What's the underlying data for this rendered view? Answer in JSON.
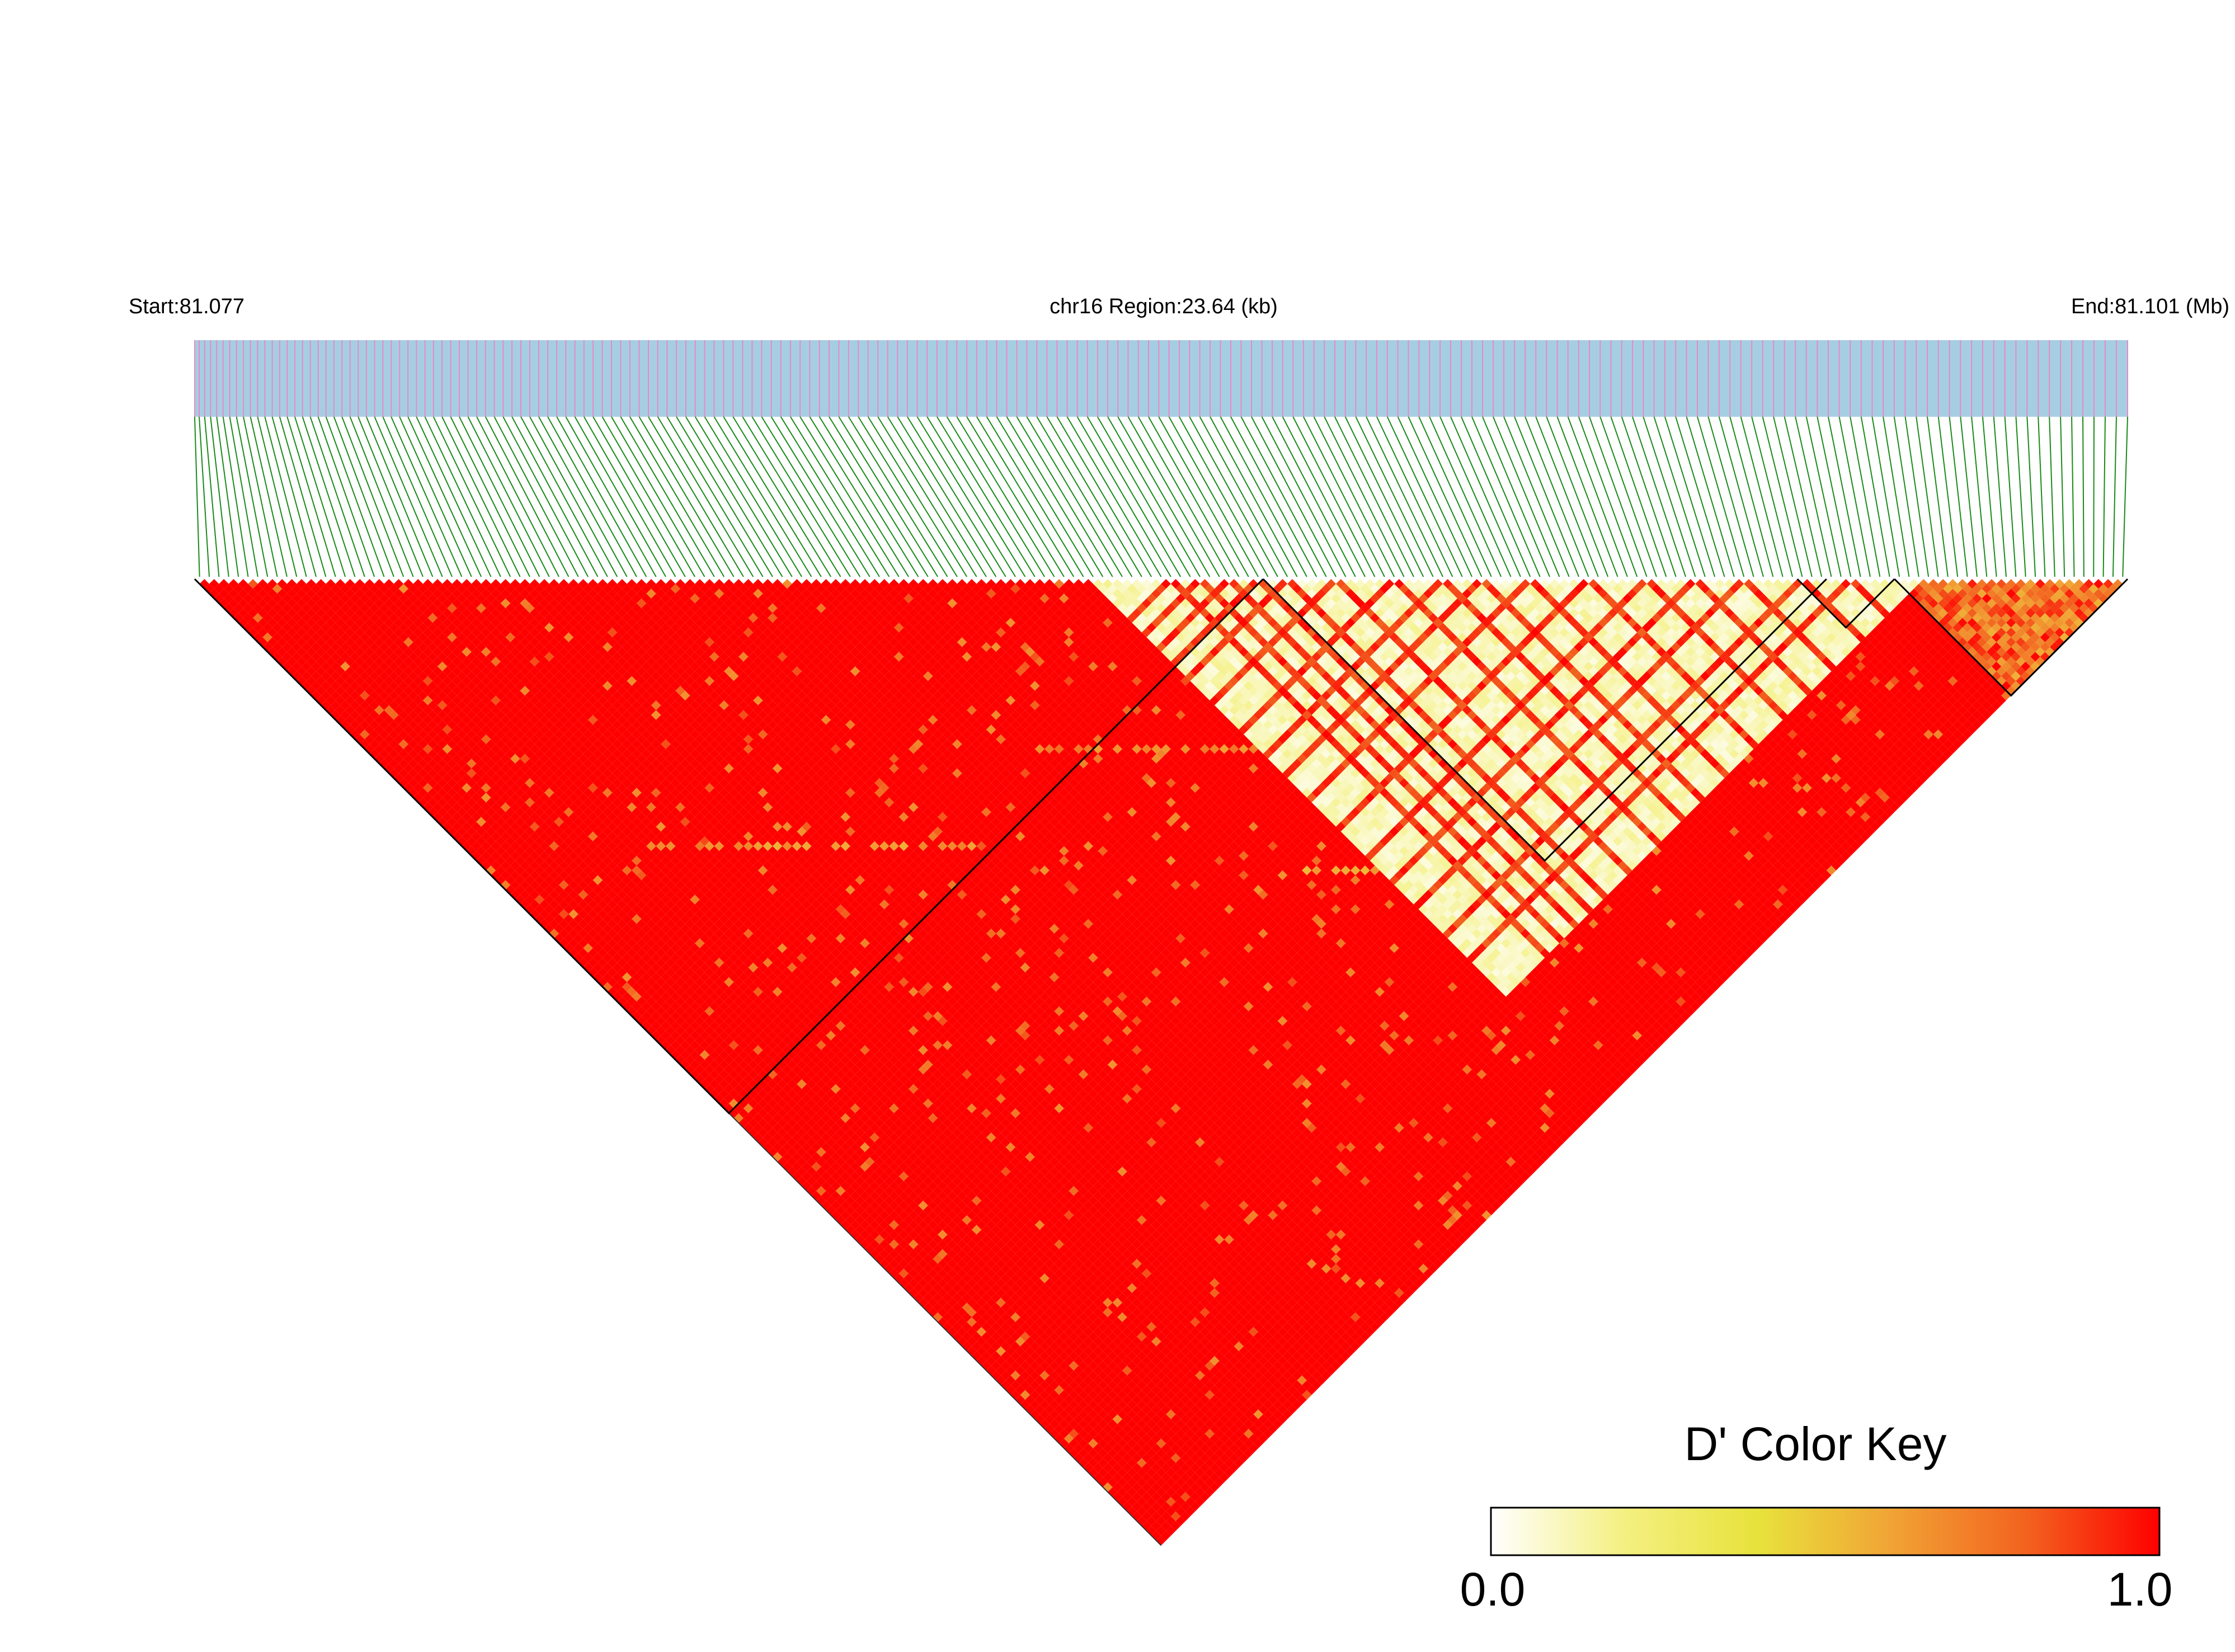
{
  "chart_data": {
    "type": "heatmap",
    "title": "",
    "region": {
      "start_label": "Start:81.077",
      "center_label": "chr16 Region:23.64 (kb)",
      "end_label": "End:81.101 (Mb)",
      "chromosome": "chr16",
      "start_mb": 81.077,
      "end_mb": 81.101,
      "length_kb": 23.64
    },
    "snp_count": 199,
    "snp_track": {
      "background": "#A6CEE3",
      "tick_color": "#E78AC3",
      "connector_color": "#1A8A1A"
    },
    "ld_matrix": {
      "metric": "D'",
      "background_value": 1.0,
      "low_ld_region": {
        "snps": [
          93,
          178
        ],
        "typical_value": 0.05
      },
      "high_ld_diagonal_bands": [
        {
          "offset": 55,
          "snp_range": [
            20,
            55
          ],
          "value": 0.55
        },
        {
          "offset": 35,
          "snp_range": [
            70,
            98
          ],
          "value": 0.6
        },
        {
          "offset": 45,
          "snp_range": [
            95,
            115
          ],
          "value": 0.85
        },
        {
          "offset": 60,
          "snp_range": [
            85,
            105
          ],
          "value": 0.5
        }
      ],
      "blocks_outlined": [
        {
          "snps": [
            1,
            110
          ]
        },
        {
          "snps": [
            111,
            168
          ]
        },
        {
          "snps": [
            166,
            175
          ]
        },
        {
          "snps": [
            176,
            199
          ]
        }
      ]
    },
    "color_key": {
      "title": "D' Color Key",
      "min_label": "0.0",
      "max_label": "1.0",
      "range": [
        0,
        1
      ],
      "colors": [
        "#FFFFFF",
        "#F4F081",
        "#E8E23C",
        "#F1A335",
        "#F2631F",
        "#FF0000"
      ]
    }
  }
}
